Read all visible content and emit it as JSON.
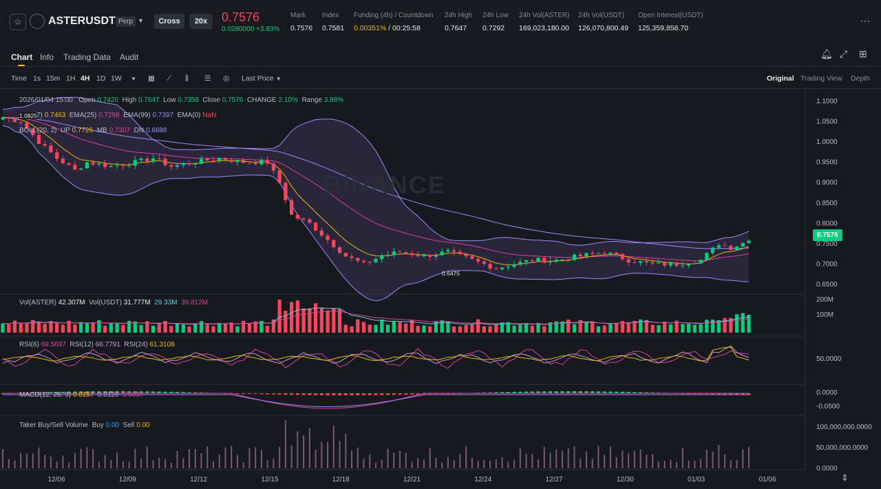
{
  "header": {
    "symbol": "ASTERUSDT",
    "contract_type": "Perp",
    "margin_mode": "Cross",
    "leverage": "20x",
    "last_price": "0.7576",
    "change": "0.0280000 +3.83%",
    "stats": [
      {
        "label": "Mark",
        "value": "0.7576"
      },
      {
        "label": "Index",
        "value": "0.7581"
      },
      {
        "label": "Funding (4h) / Countdown",
        "value_a": "0.00351%",
        "value_b": " / 00:25:58"
      },
      {
        "label": "24h High",
        "value": "0.7647"
      },
      {
        "label": "24h Low",
        "value": "0.7292"
      },
      {
        "label": "24h Vol(ASTER)",
        "value": "169,023,180.00"
      },
      {
        "label": "24h Vol(USDT)",
        "value": "126,070,800.49"
      },
      {
        "label": "Open Interest(USDT)",
        "value": "125,359,858.70"
      }
    ]
  },
  "tabs": [
    "Chart",
    "Info",
    "Trading Data",
    "Audit"
  ],
  "toolbar": {
    "time_label": "Time",
    "intervals": [
      "1s",
      "15m",
      "1H",
      "4H",
      "1D",
      "1W"
    ],
    "active_interval": "4H",
    "price_type": "Last Price",
    "views": [
      "Original",
      "Trading View",
      "Depth"
    ]
  },
  "ohlc": {
    "date": "2026/01/04 15:00",
    "open_label": "Open",
    "open": "0.7420",
    "high_label": "High",
    "high": "0.7647",
    "low_label": "Low",
    "low": "0.7359",
    "close_label": "Close",
    "close": "0.7576",
    "change_label": "CHANGE",
    "change": "2.10%",
    "range_label": "Range",
    "range": "3.88%"
  },
  "ema": {
    "ema7_label": "EMA(7)",
    "ema7": "0.7463",
    "ema25_label": "EMA(25)",
    "ema25": "0.7298",
    "ema99_label": "EMA(99)",
    "ema99": "0.7397",
    "ema0_label": "EMA(0)",
    "ema0": "NaN"
  },
  "boll": {
    "label": "BOLL(20, 2)",
    "up_label": "UP",
    "up": "0.7726",
    "mb_label": "MB",
    "mb": "0.7307",
    "dn_label": "DN",
    "dn": "0.6888"
  },
  "vol": {
    "label1": "Vol(ASTER)",
    "value1": "42.307M",
    "label2": "Vol(USDT)",
    "value2": "31.777M",
    "ma1": "29.33M",
    "ma2": "39.812M"
  },
  "rsi": {
    "l6": "RSI(6)",
    "v6": "69.5697",
    "l12": "RSI(12)",
    "v12": "66.7791",
    "l24": "RSI(24)",
    "v24": "61.3108"
  },
  "macd": {
    "label": "MACD(12, 26, 9)",
    "v1": "0.0157",
    "v2": "0.0120",
    "v3": "0.0037"
  },
  "taker": {
    "label": "Taker Buy/Sell Volume",
    "buy_label": "Buy",
    "buy": "0.00",
    "sell_label": "Sell",
    "sell": "0.00"
  },
  "watermark": "BINANCE",
  "current_price_tag": "0.7576",
  "min_label": "0.6475",
  "max_label": "1.0825",
  "colors": {
    "up": "#0ecb81",
    "down": "#f6465d",
    "accent": "#f0b90b",
    "background": "#161a1e"
  },
  "chart_data": {
    "type": "candlestick",
    "interval": "4H",
    "x_ticks": [
      "12/06",
      "12/09",
      "12/12",
      "12/15",
      "12/18",
      "12/21",
      "12/24",
      "12/27",
      "12/30",
      "01/03",
      "01/06"
    ],
    "price_axis": [
      "1.1000",
      "1.0500",
      "1.0000",
      "0.9500",
      "0.9000",
      "0.8500",
      "0.8000",
      "0.7500",
      "0.7000",
      "0.6500"
    ],
    "volume_axis": [
      "200M",
      "100M"
    ],
    "rsi_axis": [
      "50.0000"
    ],
    "macd_axis": [
      "0.0000",
      "-0.0500"
    ],
    "taker_axis": [
      "100,000,000.0000",
      "50,000,000.0000",
      "0.0000"
    ],
    "price_ylim": [
      0.63,
      1.12
    ],
    "close_path": [
      [
        0,
        1.06
      ],
      [
        3,
        1.05
      ],
      [
        6,
        1.0
      ],
      [
        9,
        0.96
      ],
      [
        12,
        0.93
      ],
      [
        14,
        0.95
      ],
      [
        18,
        0.94
      ],
      [
        22,
        0.95
      ],
      [
        25,
        0.96
      ],
      [
        28,
        0.94
      ],
      [
        32,
        0.95
      ],
      [
        36,
        0.96
      ],
      [
        40,
        0.95
      ],
      [
        44,
        0.95
      ],
      [
        46,
        0.9
      ],
      [
        48,
        0.82
      ],
      [
        51,
        0.8
      ],
      [
        54,
        0.76
      ],
      [
        57,
        0.72
      ],
      [
        60,
        0.7
      ],
      [
        63,
        0.72
      ],
      [
        66,
        0.73
      ],
      [
        70,
        0.72
      ],
      [
        74,
        0.73
      ],
      [
        78,
        0.71
      ],
      [
        82,
        0.69
      ],
      [
        85,
        0.7
      ],
      [
        88,
        0.71
      ],
      [
        92,
        0.71
      ],
      [
        96,
        0.72
      ],
      [
        100,
        0.73
      ],
      [
        104,
        0.71
      ],
      [
        108,
        0.7
      ],
      [
        112,
        0.7
      ],
      [
        116,
        0.71
      ],
      [
        119,
        0.75
      ],
      [
        121,
        0.74
      ],
      [
        124,
        0.7576
      ]
    ]
  }
}
